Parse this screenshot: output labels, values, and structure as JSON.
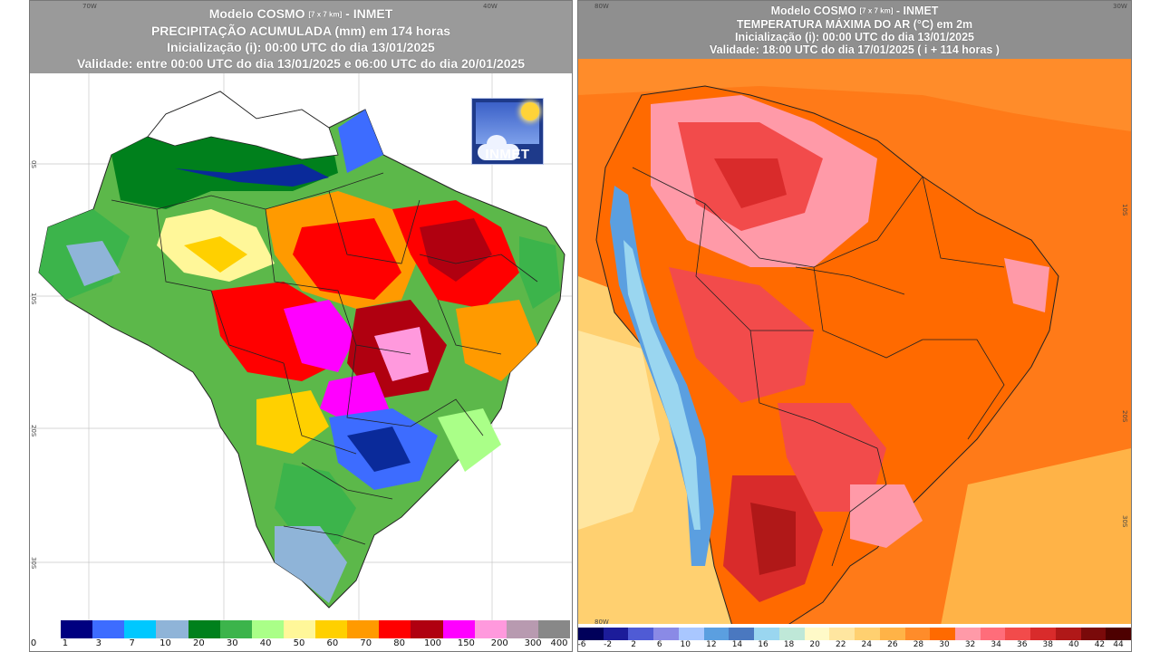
{
  "left": {
    "header": {
      "line1": "Modelo COSMO",
      "line1_small": "[7 x 7 km]",
      "line1_suffix": "- INMET",
      "line2": "PRECIPITAÇÃO ACUMULADA (mm) em 174 horas",
      "line3": "Inicialização (i): 00:00 UTC do dia 13/01/2025",
      "line4": "Validade: entre 00:00 UTC do dia 13/01/2025 e 06:00 UTC do dia 20/01/2025"
    },
    "logo_text": "INMET",
    "lon_ticks": [
      "70W",
      "60W",
      "50W",
      "40W"
    ],
    "lat_ticks": [
      "0S",
      "10S",
      "20S",
      "30S"
    ],
    "colorbar": {
      "labels": [
        "0",
        "1",
        "3",
        "7",
        "10",
        "20",
        "30",
        "40",
        "50",
        "60",
        "70",
        "80",
        "100",
        "150",
        "200",
        "300",
        "400"
      ],
      "colors": [
        "#000080",
        "#3d6cff",
        "#00c8ff",
        "#8fb4d8",
        "#00801c",
        "#3cb44b",
        "#aaff88",
        "#fff799",
        "#ffd000",
        "#ff9a00",
        "#ff0000",
        "#b00010",
        "#ff00ff",
        "#ff99dd",
        "#b89ab0",
        "#888888"
      ]
    }
  },
  "right": {
    "header": {
      "line1": "Modelo COSMO",
      "line1_small": "[7 x 7 km]",
      "line1_suffix": "- INMET",
      "line2": "TEMPERATURA MÁXIMA DO AR (°C) em 2m",
      "line3": "Inicialização (i): 00:00 UTC do dia 13/01/2025",
      "line4": "Validade: 18:00 UTC do dia 17/01/2025 ( i + 114 horas )"
    },
    "lon_ticks": [
      "80W",
      "70W",
      "60W",
      "50W",
      "40W",
      "30W"
    ],
    "lat_ticks": [
      "0",
      "10S",
      "20S",
      "30S",
      "40S"
    ],
    "colorbar": {
      "labels": [
        "-6",
        "-2",
        "2",
        "6",
        "10",
        "12",
        "14",
        "16",
        "18",
        "20",
        "22",
        "24",
        "26",
        "28",
        "30",
        "32",
        "34",
        "36",
        "38",
        "40",
        "42",
        "44"
      ],
      "colors": [
        "#00005a",
        "#1c1c9a",
        "#4f5bd5",
        "#8a8ae6",
        "#a9c7ff",
        "#5b9fe0",
        "#4a78c0",
        "#9ad6f0",
        "#bfe8d8",
        "#fffac8",
        "#ffe6a0",
        "#ffd070",
        "#ffb347",
        "#ff8c2a",
        "#ff6a00",
        "#ff9aa8",
        "#ff6d7a",
        "#f24b4b",
        "#d92b2b",
        "#b01818",
        "#7a0a0a",
        "#4d0000"
      ]
    }
  }
}
